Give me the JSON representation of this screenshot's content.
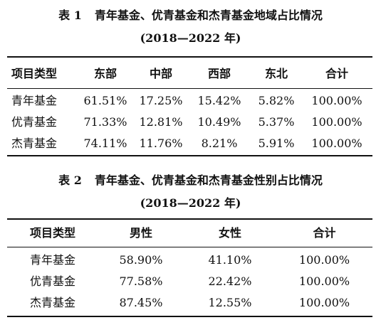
{
  "table1": {
    "caption_num": "表 1",
    "caption_title": "青年基金、优青基金和杰青基金地域占比情况",
    "years": "(2018—2022 年)",
    "headers": [
      "项目类型",
      "东部",
      "中部",
      "西部",
      "东北",
      "合计"
    ],
    "rows": [
      [
        "青年基金",
        "61.51%",
        "17.25%",
        "15.42%",
        "5.82%",
        "100.00%"
      ],
      [
        "优青基金",
        "71.33%",
        "12.81%",
        "10.49%",
        "5.37%",
        "100.00%"
      ],
      [
        "杰青基金",
        "74.11%",
        "11.76%",
        "8.21%",
        "5.91%",
        "100.00%"
      ]
    ]
  },
  "table2": {
    "caption_num": "表 2",
    "caption_title": "青年基金、优青基金和杰青基金性别占比情况",
    "years": "(2018—2022 年)",
    "headers": [
      "项目类型",
      "男性",
      "女性",
      "合计"
    ],
    "rows": [
      [
        "青年基金",
        "58.90%",
        "41.10%",
        "100.00%"
      ],
      [
        "优青基金",
        "77.58%",
        "22.42%",
        "100.00%"
      ],
      [
        "杰青基金",
        "87.45%",
        "12.55%",
        "100.00%"
      ]
    ]
  }
}
